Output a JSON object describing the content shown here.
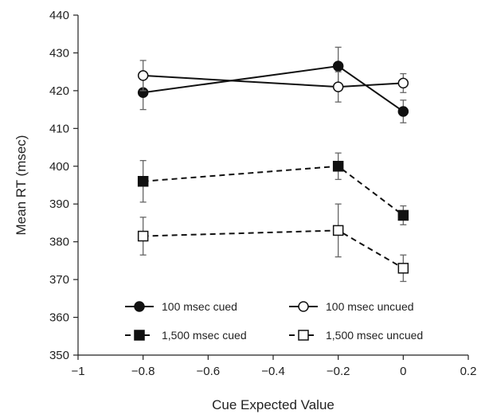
{
  "chart_data": {
    "type": "line",
    "xlabel": "Cue Expected Value",
    "ylabel": "Mean RT (msec)",
    "xlim": [
      -1,
      0.2
    ],
    "ylim": [
      350,
      440
    ],
    "x_ticks": [
      -1,
      -0.8,
      -0.6,
      -0.4,
      -0.2,
      0,
      0.2
    ],
    "x_tick_labels": [
      "−1",
      "−0.8",
      "−0.6",
      "−0.4",
      "−0.2",
      "0",
      "0.2"
    ],
    "y_ticks": [
      350,
      360,
      370,
      380,
      390,
      400,
      410,
      420,
      430,
      440
    ],
    "y_tick_labels": [
      "350",
      "360",
      "370",
      "380",
      "390",
      "400",
      "410",
      "420",
      "430",
      "440"
    ],
    "grid": false,
    "legend_position": "bottom-inside",
    "x": [
      -0.8,
      -0.2,
      0
    ],
    "series": [
      {
        "name": "100 msec cued",
        "values": [
          419.5,
          426.5,
          414.5
        ],
        "error": [
          4.5,
          5.0,
          3.0
        ],
        "marker": "circle",
        "filled": true,
        "line": "solid"
      },
      {
        "name": "100 msec uncued",
        "values": [
          424.0,
          421.0,
          422.0
        ],
        "error": [
          4.0,
          4.0,
          2.5
        ],
        "marker": "circle",
        "filled": false,
        "line": "solid"
      },
      {
        "name": "1,500 msec cued",
        "values": [
          396.0,
          400.0,
          387.0
        ],
        "error": [
          5.5,
          3.5,
          2.5
        ],
        "marker": "square",
        "filled": true,
        "line": "dashed"
      },
      {
        "name": "1,500 msec uncued",
        "values": [
          381.5,
          383.0,
          373.0
        ],
        "error": [
          5.0,
          7.0,
          3.5
        ],
        "marker": "square",
        "filled": false,
        "line": "dashed"
      }
    ]
  }
}
